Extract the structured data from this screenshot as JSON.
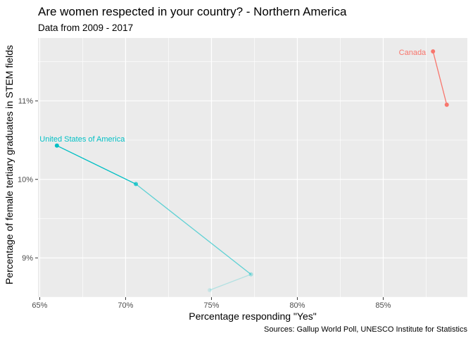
{
  "chart_data": {
    "type": "scatter",
    "title": "Are women respected in your country? - Northern America",
    "subtitle": "Data from 2009 - 2017",
    "xlabel": "Percentage responding \"Yes\"",
    "ylabel": "Percentage of female tertiary graduates in STEM fields",
    "caption": "Sources: Gallup World Poll, UNESCO Institute for Statistics",
    "xlim": [
      64.9,
      89.9
    ],
    "ylim": [
      8.5,
      11.8
    ],
    "x_ticks": [
      65,
      70,
      75,
      80,
      85
    ],
    "x_tick_labels": [
      "65%",
      "70%",
      "75%",
      "80%",
      "85%"
    ],
    "y_ticks": [
      9,
      10,
      11
    ],
    "y_tick_labels": [
      "9%",
      "10%",
      "11%"
    ],
    "grid": true,
    "panel_color": "#EBEBEB",
    "series": [
      {
        "name": "Canada",
        "color": "#F8766D",
        "points": [
          {
            "x": 88.7,
            "y": 10.95,
            "alpha": 1.0
          },
          {
            "x": 87.9,
            "y": 11.63,
            "alpha": 1.0
          }
        ],
        "label_point": 1
      },
      {
        "name": "United States of America",
        "color": "#00BFC4",
        "points": [
          {
            "x": 74.9,
            "y": 8.59,
            "alpha": 0.15
          },
          {
            "x": 77.3,
            "y": 8.79,
            "alpha": 0.3
          },
          {
            "x": 70.6,
            "y": 9.94,
            "alpha": 0.75
          },
          {
            "x": 66.0,
            "y": 10.43,
            "alpha": 1.0
          }
        ],
        "label_point": 3
      }
    ]
  }
}
